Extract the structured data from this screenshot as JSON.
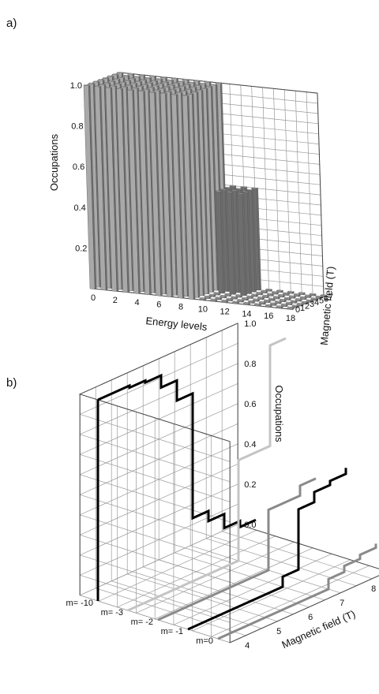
{
  "figure": {
    "panel_a_label": "a)",
    "panel_b_label": "b)"
  },
  "chart_data": [
    {
      "panel": "a)",
      "type": "bar",
      "subtype": "3d-bar",
      "xlabel": "Energy levels",
      "ylabel": "Magnetic field (T)",
      "zlabel": "Occupations",
      "x_ticks": [
        "0",
        "2",
        "4",
        "6",
        "8",
        "10",
        "12",
        "14",
        "16",
        "18"
      ],
      "y_ticks": [
        "0",
        "1",
        "2",
        "3",
        "4",
        "5",
        "6",
        "7"
      ],
      "z_ticks": [
        "0.2",
        "0.4",
        "0.6",
        "0.8",
        "1.0"
      ],
      "xlim": [
        0,
        18
      ],
      "ylim": [
        0,
        7
      ],
      "zlim": [
        0,
        1.0
      ],
      "energy_levels": [
        0,
        1,
        2,
        3,
        4,
        5,
        6,
        7,
        8,
        9,
        10,
        11,
        12,
        13,
        14,
        15,
        16,
        17,
        18
      ],
      "magnetic_fields": [
        0,
        1,
        2,
        3,
        4,
        5,
        6,
        7
      ],
      "occupations": [
        [
          1,
          1,
          1,
          1,
          1,
          1,
          1,
          1,
          1,
          1,
          0,
          0,
          0,
          0,
          0,
          0,
          0,
          0,
          0
        ],
        [
          1,
          1,
          1,
          1,
          1,
          1,
          1,
          1,
          1,
          1,
          0,
          0,
          0,
          0,
          0,
          0,
          0,
          0,
          0
        ],
        [
          1,
          1,
          1,
          1,
          1,
          1,
          1,
          1,
          1,
          1,
          0,
          0,
          0,
          0,
          0,
          0,
          0,
          0,
          0
        ],
        [
          1,
          1,
          1,
          1,
          1,
          1,
          1,
          1,
          1,
          1,
          0,
          0,
          0,
          0,
          0,
          0,
          0,
          0,
          0
        ],
        [
          1,
          1,
          1,
          1,
          1,
          1,
          1,
          1,
          1,
          1,
          0.5,
          0.5,
          0.5,
          0,
          0,
          0,
          0,
          0,
          0
        ],
        [
          1,
          1,
          1,
          1,
          1,
          1,
          1,
          1,
          1,
          1,
          0.5,
          0.5,
          0.5,
          0,
          0,
          0,
          0,
          0,
          0
        ],
        [
          1,
          1,
          1,
          1,
          1,
          1,
          1,
          1,
          1,
          1,
          0.5,
          0.5,
          0.5,
          0,
          0,
          0,
          0,
          0,
          0
        ],
        [
          1,
          1,
          1,
          1,
          1,
          1,
          1,
          1,
          1,
          1,
          0.5,
          0.5,
          0.5,
          0,
          0,
          0,
          0,
          0,
          0
        ]
      ],
      "colors": {
        "tall_bars": "#a9a9a9",
        "bar_shade": "#6e6e6e",
        "low_bars": "#8c8c8c"
      }
    },
    {
      "panel": "b)",
      "type": "line",
      "subtype": "3d-waterfall",
      "xlabel": "Magnetic field (T)",
      "zlabel": "Occupations",
      "x_ticks": [
        "4",
        "5",
        "6",
        "7",
        "8"
      ],
      "z_ticks": [
        "0.0",
        "0.2",
        "0.4",
        "0.6",
        "0.8",
        "1.0"
      ],
      "xlim": [
        3.5,
        8.5
      ],
      "zlim": [
        0,
        1.0
      ],
      "series": [
        {
          "name": "m= -10",
          "color": "#000000",
          "x": [
            3.5,
            4.0,
            4.5,
            5.0,
            5.5,
            6.0,
            6.5,
            7.0,
            7.5,
            8.0,
            8.5
          ],
          "values": [
            1.0,
            1.0,
            0.99,
            0.98,
            0.92,
            0.82,
            0.2,
            0.15,
            0.08,
            0.05,
            0.05
          ]
        },
        {
          "name": "m= -3",
          "color": "#c4c4c4",
          "x": [
            3.5,
            4.0,
            4.5,
            5.0,
            5.5,
            6.0,
            6.5,
            7.0,
            7.5,
            8.0,
            8.5
          ],
          "values": [
            0.0,
            0.0,
            0.0,
            0.0,
            0.0,
            0.0,
            0.0,
            0.5,
            0.5,
            1.0,
            1.0
          ]
        },
        {
          "name": "m= -2",
          "color": "#8a8a8a",
          "x": [
            3.5,
            4.0,
            4.5,
            5.0,
            5.5,
            6.0,
            6.5,
            7.0,
            7.5,
            8.0,
            8.5
          ],
          "values": [
            0.0,
            0.0,
            0.0,
            0.0,
            0.0,
            0.0,
            0.0,
            0.3,
            0.3,
            0.35,
            0.35
          ]
        },
        {
          "name": "m= -1",
          "color": "#000000",
          "x": [
            3.5,
            4.0,
            4.5,
            5.0,
            5.5,
            6.0,
            6.5,
            7.0,
            7.5,
            8.0,
            8.5
          ],
          "values": [
            0.0,
            0.0,
            0.0,
            0.0,
            0.0,
            0.0,
            0.05,
            0.35,
            0.4,
            0.42,
            0.45
          ]
        },
        {
          "name": "m=0",
          "color": "#8a8a8a",
          "x": [
            3.5,
            4.0,
            4.5,
            5.0,
            5.5,
            6.0,
            6.5,
            7.0,
            7.5,
            8.0,
            8.5
          ],
          "values": [
            0.0,
            0.0,
            0.0,
            0.0,
            0.0,
            0.0,
            0.0,
            0.05,
            0.08,
            0.1,
            0.12
          ]
        }
      ]
    }
  ]
}
